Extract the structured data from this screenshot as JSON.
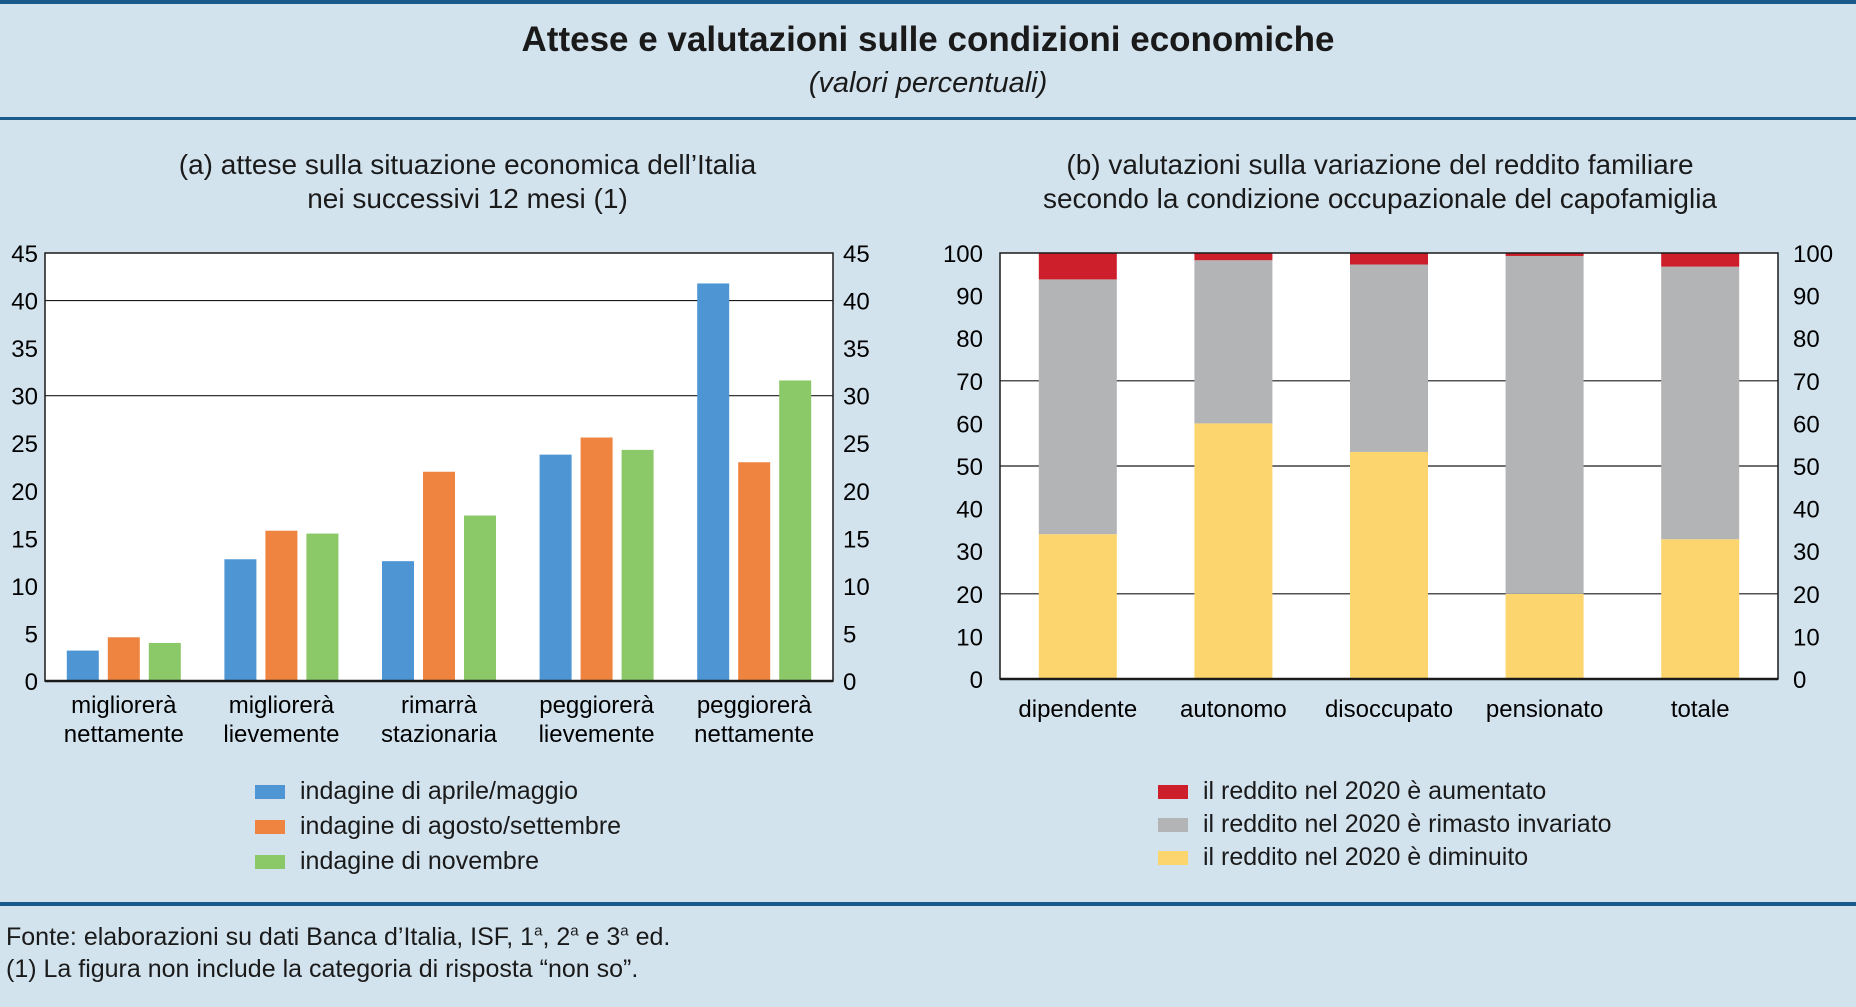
{
  "header": {
    "title": "Attese e valutazioni sulle condizioni economiche",
    "subtitle": "(valori percentuali)"
  },
  "chart_data": [
    {
      "type": "bar",
      "title_line1": "(a) attese sulla situazione economica dell’Italia",
      "title_line2": "nei successivi 12 mesi (1)",
      "categories": [
        [
          "migliorerà",
          "nettamente"
        ],
        [
          "migliorerà",
          "lievemente"
        ],
        [
          "rimarrà",
          "stazionaria"
        ],
        [
          "peggiorerà",
          "lievemente"
        ],
        [
          "peggiorerà",
          "nettamente"
        ]
      ],
      "series": [
        {
          "name": "indagine di aprile/maggio",
          "color": "#4e96d3",
          "values": [
            3.2,
            12.8,
            12.6,
            23.8,
            41.8
          ]
        },
        {
          "name": "indagine di agosto/settembre",
          "color": "#ee8440",
          "values": [
            4.6,
            15.8,
            22.0,
            25.6,
            23.0
          ]
        },
        {
          "name": "indagine di novembre",
          "color": "#8bc867",
          "values": [
            4.0,
            15.5,
            17.4,
            24.3,
            31.6
          ]
        }
      ],
      "ylim": [
        0,
        45
      ],
      "yticks": [
        0,
        5,
        10,
        15,
        20,
        25,
        30,
        35,
        40,
        45
      ],
      "ytick_labels": [
        "0",
        "5",
        "10",
        "15",
        "20",
        "25",
        "30",
        "35",
        "40",
        "45"
      ],
      "gridlines": [
        30,
        40
      ]
    },
    {
      "type": "bar",
      "stacked": true,
      "title_line1": "(b) valutazioni sulla variazione del reddito familiare",
      "title_line2": "secondo la condizione occupazionale del capofamiglia",
      "categories": [
        "dipendente",
        "autonomo",
        "disoccupato",
        "pensionato",
        "totale"
      ],
      "series": [
        {
          "name": "il reddito nel 2020 è diminuito",
          "color": "#fdd56e",
          "values": [
            34.0,
            60.0,
            53.3,
            20.0,
            32.8
          ]
        },
        {
          "name": "il reddito nel 2020 è rimasto invariato",
          "color": "#b2b4b6",
          "values": [
            59.8,
            38.3,
            44.0,
            79.3,
            64.0
          ]
        },
        {
          "name": "il reddito nel 2020 è aumentato",
          "color": "#cc1f2b",
          "values": [
            6.2,
            1.7,
            2.7,
            0.7,
            3.2
          ]
        }
      ],
      "legend_order": [
        2,
        1,
        0
      ],
      "ylim": [
        0,
        100
      ],
      "yticks": [
        0,
        10,
        20,
        30,
        40,
        50,
        60,
        70,
        80,
        90,
        100
      ],
      "ytick_labels": [
        "0",
        "10",
        "20",
        "30",
        "40",
        "50",
        "60",
        "70",
        "80",
        "90",
        "100"
      ],
      "gridlines": [
        20,
        50,
        70
      ]
    }
  ],
  "footer": {
    "source_prefix": "Fonte: elaborazioni su dati Banca d’Italia, ISF, 1",
    "sup1": "a",
    "mid1": ", 2",
    "sup2": "a",
    "mid2": " e 3",
    "sup3": "a",
    "source_suffix": " ed.",
    "note": "(1) La figura non include la categoria di risposta “non so”."
  }
}
